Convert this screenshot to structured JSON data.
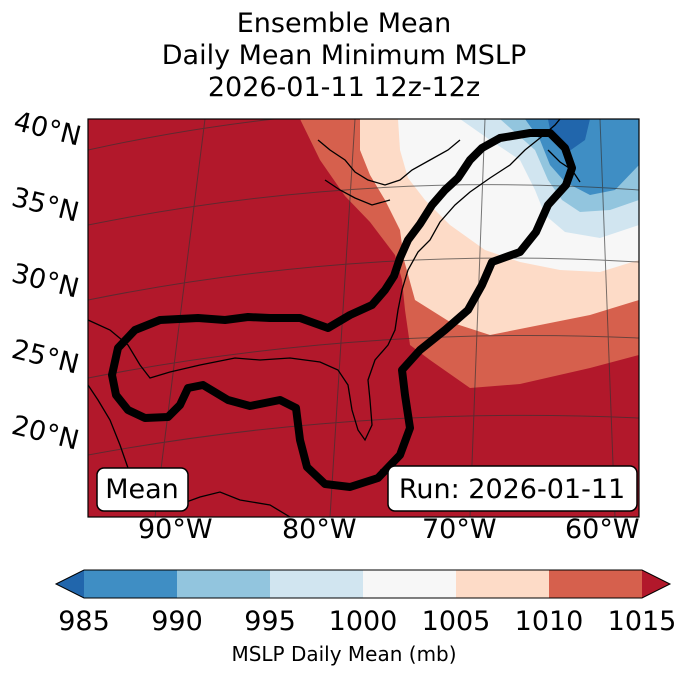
{
  "title": {
    "line1": "Ensemble Mean",
    "line2": "Daily Mean Minimum MSLP",
    "line3": "2026-01-11 12z-12z"
  },
  "lat_labels": [
    "40°N",
    "35°N",
    "30°N",
    "25°N",
    "20°N"
  ],
  "lon_labels": [
    "90°W",
    "80°W",
    "70°W",
    "60°W"
  ],
  "boxes": {
    "mean": "Mean",
    "run": "Run: 2026-01-11"
  },
  "colorbar": {
    "ticks": [
      "985",
      "990",
      "995",
      "1000",
      "1005",
      "1010",
      "1015"
    ],
    "label": "MSLP Daily Mean (mb)",
    "colors": [
      "#2166ac",
      "#3f8ec4",
      "#92c5de",
      "#d1e5f0",
      "#f7f7f7",
      "#fddbc7",
      "#d6604d",
      "#b2182b"
    ]
  }
}
